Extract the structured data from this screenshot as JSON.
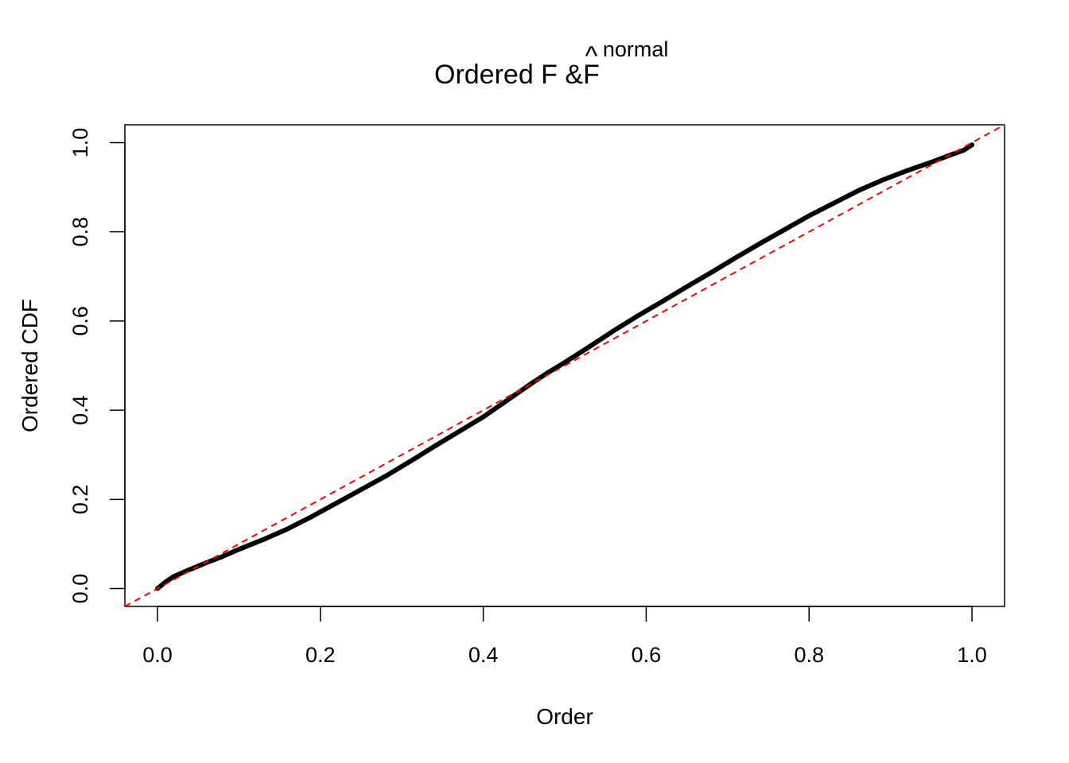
{
  "chart_data": {
    "type": "line",
    "title": {
      "main": "Ordered F & ",
      "hat_symbol": "F",
      "hat_mark": "^",
      "superscript": "normal"
    },
    "xlabel": "Order",
    "ylabel": "Ordered CDF",
    "xlim": [
      -0.04,
      1.04
    ],
    "ylim": [
      -0.04,
      1.04
    ],
    "x_ticks": [
      0.0,
      0.2,
      0.4,
      0.6,
      0.8,
      1.0
    ],
    "x_tick_labels": [
      "0.0",
      "0.2",
      "0.4",
      "0.6",
      "0.8",
      "1.0"
    ],
    "y_ticks": [
      0.0,
      0.2,
      0.4,
      0.6,
      0.8,
      1.0
    ],
    "y_tick_labels": [
      "0.0",
      "0.2",
      "0.4",
      "0.6",
      "0.8",
      "1.0"
    ],
    "grid": false,
    "series": [
      {
        "color": "#000000",
        "style": "solid",
        "x": [
          0.0,
          0.01,
          0.02,
          0.04,
          0.06,
          0.08,
          0.1,
          0.13,
          0.16,
          0.19,
          0.22,
          0.25,
          0.28,
          0.31,
          0.34,
          0.37,
          0.4,
          0.43,
          0.46,
          0.48,
          0.5,
          0.53,
          0.56,
          0.59,
          0.62,
          0.65,
          0.68,
          0.71,
          0.74,
          0.77,
          0.8,
          0.83,
          0.86,
          0.89,
          0.92,
          0.95,
          0.97,
          0.99,
          1.0
        ],
        "y": [
          0.0,
          0.015,
          0.027,
          0.043,
          0.058,
          0.072,
          0.088,
          0.11,
          0.134,
          0.162,
          0.192,
          0.222,
          0.252,
          0.285,
          0.319,
          0.352,
          0.385,
          0.423,
          0.461,
          0.485,
          0.507,
          0.542,
          0.578,
          0.612,
          0.644,
          0.677,
          0.709,
          0.742,
          0.774,
          0.805,
          0.836,
          0.864,
          0.892,
          0.916,
          0.937,
          0.956,
          0.97,
          0.983,
          0.995
        ]
      },
      {
        "color": "#ff0000",
        "style": "dashed",
        "x": [
          -0.04,
          1.04
        ],
        "y": [
          -0.04,
          1.04
        ]
      }
    ]
  }
}
